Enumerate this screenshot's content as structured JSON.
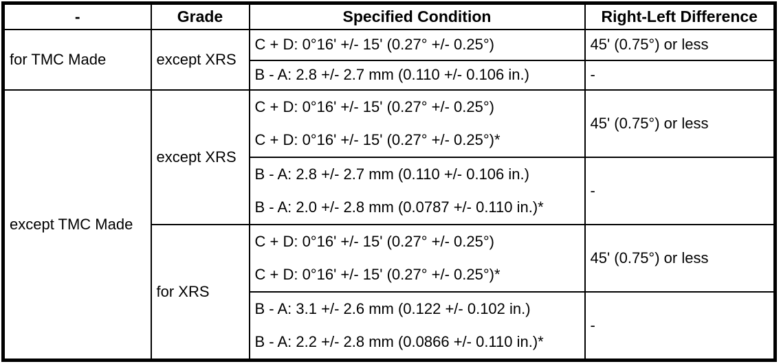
{
  "table": {
    "headers": [
      "-",
      "Grade",
      "Specified Condition",
      "Right-Left Difference"
    ],
    "sections": [
      {
        "made": "for TMC Made",
        "grades": [
          {
            "grade": "except XRS",
            "rows": [
              {
                "conditions": [
                  "C + D: 0°16' +/- 15' (0.27° +/- 0.25°)"
                ],
                "difference": "45' (0.75°) or less"
              },
              {
                "conditions": [
                  "B - A: 2.8 +/- 2.7 mm (0.110 +/- 0.106 in.)"
                ],
                "difference": "-"
              }
            ]
          }
        ]
      },
      {
        "made": "except TMC Made",
        "grades": [
          {
            "grade": "except XRS",
            "rows": [
              {
                "conditions": [
                  "C + D: 0°16' +/- 15' (0.27° +/- 0.25°)",
                  "C + D: 0°16' +/- 15' (0.27° +/- 0.25°)*"
                ],
                "difference": "45' (0.75°) or less"
              },
              {
                "conditions": [
                  "B - A: 2.8 +/- 2.7 mm (0.110 +/- 0.106 in.)",
                  "B - A: 2.0 +/- 2.8 mm (0.0787 +/- 0.110 in.)*"
                ],
                "difference": "-"
              }
            ]
          },
          {
            "grade": "for XRS",
            "rows": [
              {
                "conditions": [
                  "C + D: 0°16' +/- 15' (0.27° +/- 0.25°)",
                  "C + D: 0°16' +/- 15' (0.27° +/- 0.25°)*"
                ],
                "difference": "45' (0.75°) or less"
              },
              {
                "conditions": [
                  "B - A: 3.1 +/- 2.6 mm (0.122 +/- 0.102 in.)",
                  "B - A: 2.2 +/- 2.8 mm (0.0866 +/- 0.110 in.)*"
                ],
                "difference": "-"
              }
            ]
          }
        ]
      }
    ]
  }
}
